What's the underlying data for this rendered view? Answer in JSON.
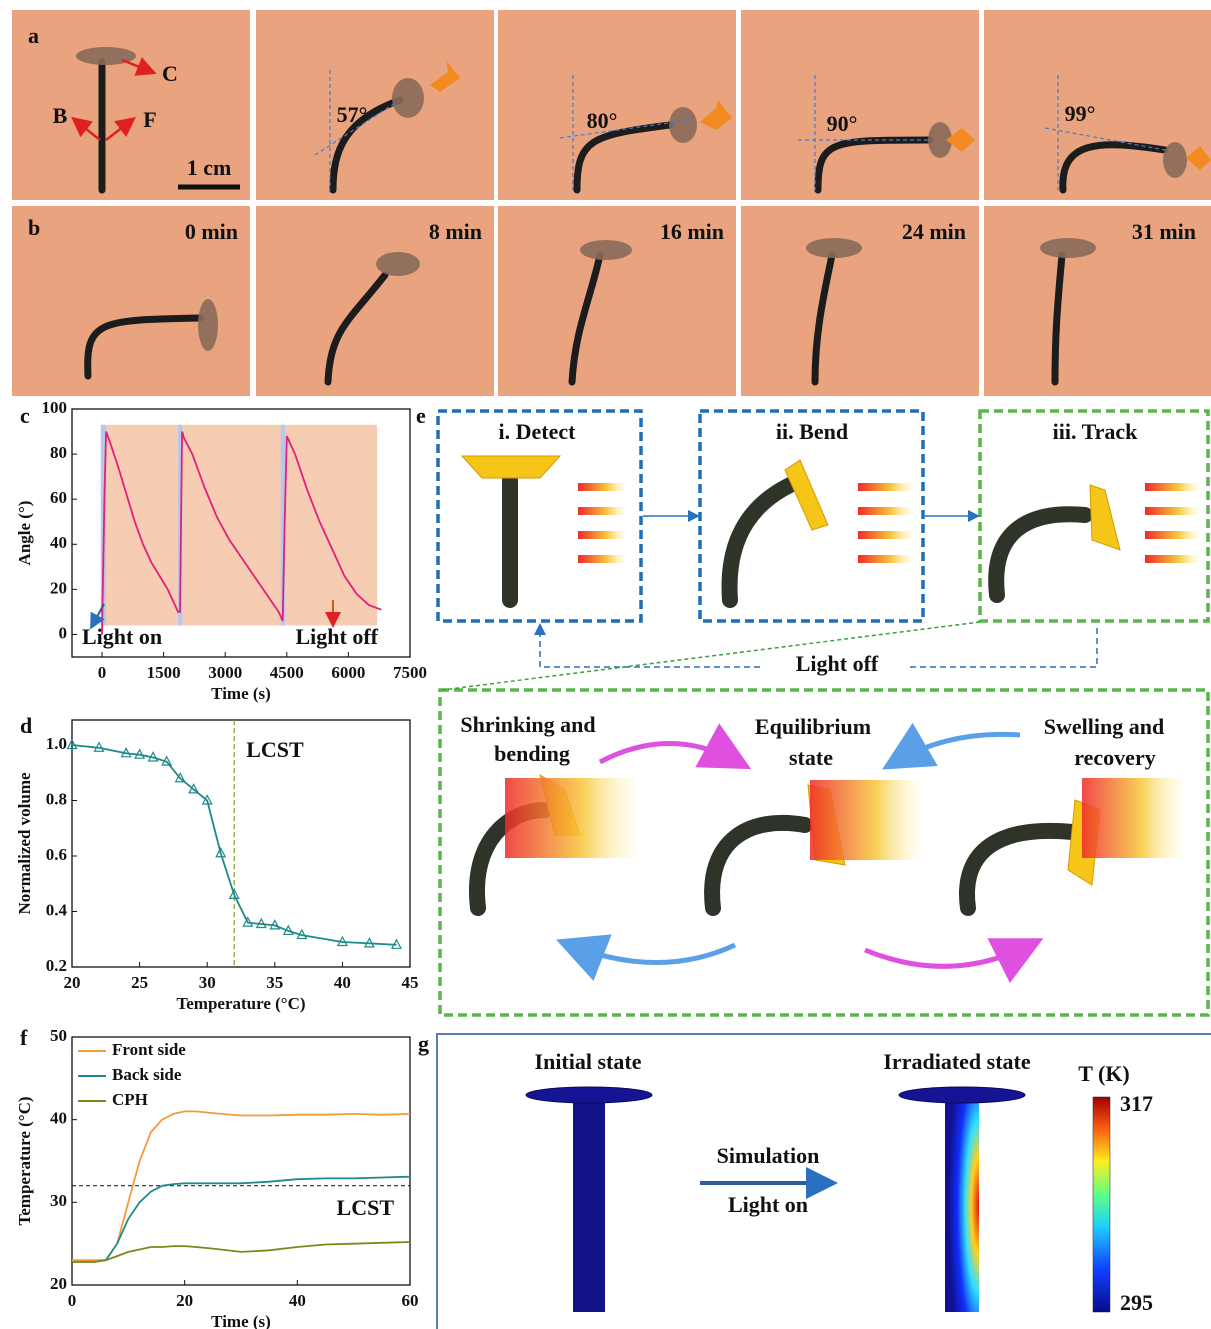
{
  "panel_labels": [
    "a",
    "b",
    "c",
    "d",
    "e",
    "f",
    "g"
  ],
  "photos": {
    "row_a": {
      "arrows": [
        "C",
        "B",
        "F"
      ],
      "scale": "1 cm",
      "angles": [
        "57°",
        "80°",
        "90°",
        "99°"
      ]
    },
    "row_b": {
      "times": [
        "0 min",
        "8 min",
        "16 min",
        "24 min",
        "31 min"
      ]
    }
  },
  "diagram_e": {
    "steps": [
      "i. Detect",
      "ii. Bend",
      "iii. Track"
    ],
    "light_off": "Light off",
    "states": [
      [
        "Shrinking and",
        "bending"
      ],
      [
        "Equilibrium",
        "state"
      ],
      [
        "Swelling and",
        "recovery"
      ]
    ]
  },
  "diagram_g": {
    "initial": "Initial state",
    "irradiated": "Irradiated state",
    "arrow_top": "Simulation",
    "arrow_bottom": "Light on",
    "colorbar_title": "T (K)",
    "colorbar_max": "317",
    "colorbar_min": "295"
  },
  "chart_data": [
    {
      "type": "line",
      "xlabel": "Time (s)",
      "ylabel": "Angle (°)",
      "xlim": [
        -730,
        7500
      ],
      "ylim": [
        -10,
        100
      ],
      "xticks": [
        0,
        1500,
        3000,
        4500,
        6000,
        7500
      ],
      "yticks": [
        0,
        20,
        40,
        60,
        80,
        100
      ],
      "bands": [
        {
          "start": 0,
          "end": 6700,
          "y": [
            4,
            93
          ],
          "color": "#f6cdb2"
        },
        {
          "start": -30,
          "end": 100,
          "y": [
            4,
            93
          ],
          "color": "#b9c8e8"
        },
        {
          "start": 1850,
          "end": 1960,
          "y": [
            4,
            93
          ],
          "color": "#b9c8e8"
        },
        {
          "start": 4350,
          "end": 4460,
          "y": [
            4,
            93
          ],
          "color": "#b9c8e8"
        }
      ],
      "x": [
        0,
        60,
        100,
        200,
        400,
        600,
        800,
        1000,
        1200,
        1400,
        1600,
        1750,
        1850,
        1900,
        1950,
        2000,
        2200,
        2500,
        2800,
        3100,
        3400,
        3700,
        4000,
        4300,
        4400,
        4450,
        4500,
        4700,
        5000,
        5300,
        5600,
        5900,
        6200,
        6500,
        6800
      ],
      "values": [
        0,
        60,
        90,
        85,
        74,
        62,
        50,
        40,
        32,
        26,
        20,
        14,
        10,
        10,
        90,
        87,
        80,
        65,
        52,
        42,
        34,
        26,
        18,
        10,
        6,
        50,
        88,
        80,
        64,
        50,
        38,
        26,
        18,
        13,
        11
      ],
      "color": "#e0207a",
      "annotations": [
        "Light on",
        "Light off"
      ]
    },
    {
      "type": "line",
      "marker": "triangle",
      "xlabel": "Temperature (°C)",
      "ylabel": "Normalized volume",
      "xlim": [
        20,
        45
      ],
      "ylim": [
        0.2,
        1.09
      ],
      "xticks": [
        20,
        25,
        30,
        35,
        40,
        45
      ],
      "yticks": [
        0.2,
        0.4,
        0.6,
        0.8,
        {
          "value": 1,
          "label": "1.0"
        }
      ],
      "x": [
        20,
        22,
        24,
        25,
        26,
        27,
        28,
        29,
        30,
        31,
        32,
        33,
        34,
        35,
        36,
        37,
        40,
        42,
        44
      ],
      "values": [
        1.0,
        0.99,
        0.97,
        0.965,
        0.955,
        0.94,
        0.88,
        0.84,
        0.8,
        0.61,
        0.46,
        0.36,
        0.355,
        0.35,
        0.33,
        0.315,
        0.29,
        0.285,
        0.28
      ],
      "color": "#1f8a8a",
      "vline": 32,
      "vline_color": "#8aa83a",
      "annotations": [
        "LCST"
      ]
    },
    {
      "type": "line",
      "xlabel": "Time (s)",
      "ylabel": "Temperature (°C)",
      "xlim": [
        0,
        60
      ],
      "ylim": [
        20,
        50
      ],
      "xticks": [
        0,
        20,
        40,
        60
      ],
      "yticks": [
        20,
        30,
        40,
        50
      ],
      "legend": "top-left",
      "x": [
        0,
        4,
        6,
        8,
        10,
        12,
        14,
        16,
        18,
        20,
        22,
        25,
        30,
        35,
        40,
        45,
        50,
        55,
        60
      ],
      "series": [
        {
          "name": "Front side",
          "color": "#f39a3a",
          "values": [
            23,
            23,
            23,
            25,
            30,
            35,
            38.5,
            40,
            40.7,
            41,
            41,
            40.8,
            40.5,
            40.5,
            40.6,
            40.6,
            40.7,
            40.6,
            40.7
          ]
        },
        {
          "name": "Back side",
          "color": "#1f8a8a",
          "values": [
            22.8,
            22.8,
            23,
            25,
            28,
            30,
            31.3,
            32,
            32.2,
            32.3,
            32.3,
            32.3,
            32.3,
            32.5,
            32.8,
            32.9,
            32.9,
            33,
            33.1
          ]
        },
        {
          "name": "CPH",
          "color": "#7a8a1a",
          "values": [
            22.8,
            22.8,
            23,
            23.5,
            24,
            24.3,
            24.6,
            24.6,
            24.7,
            24.7,
            24.6,
            24.4,
            24,
            24.2,
            24.6,
            24.9,
            25,
            25.1,
            25.2
          ]
        }
      ],
      "hline": 32,
      "annotations": [
        "LCST"
      ]
    }
  ]
}
